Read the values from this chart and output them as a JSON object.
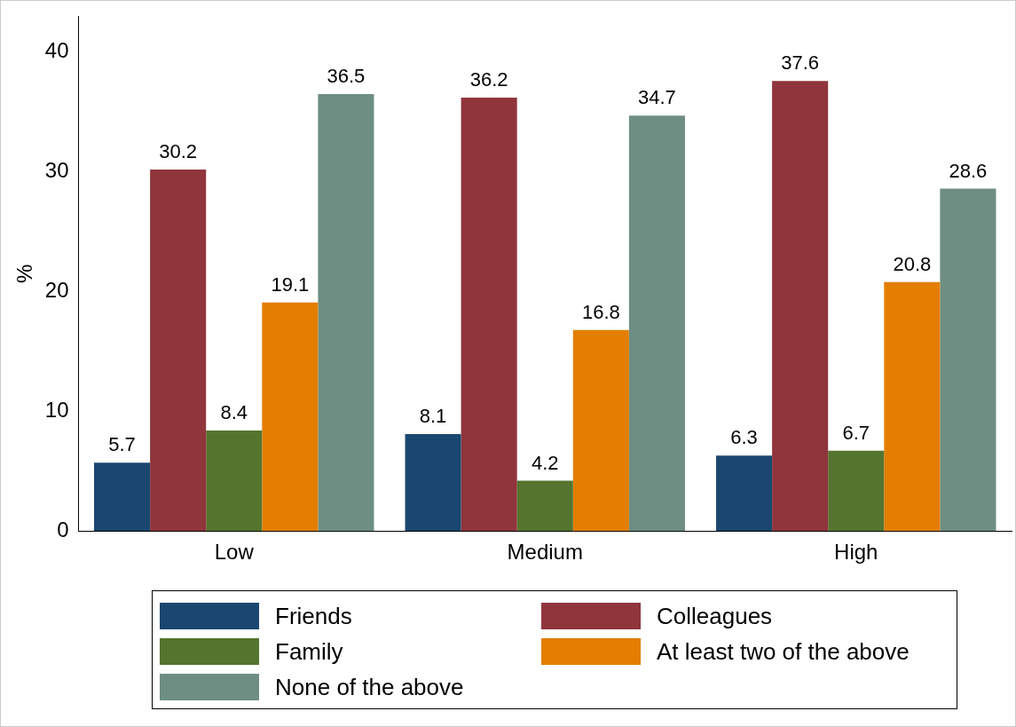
{
  "chart_data": {
    "type": "bar",
    "ylabel": "%",
    "categories": [
      "Low",
      "Medium",
      "High"
    ],
    "series": [
      {
        "name": "Friends",
        "color": "#1a476f",
        "values": [
          5.7,
          8.1,
          6.3
        ]
      },
      {
        "name": "Colleagues",
        "color": "#90353b",
        "values": [
          30.2,
          36.2,
          37.6
        ]
      },
      {
        "name": "Family",
        "color": "#55752f",
        "values": [
          8.4,
          4.2,
          6.7
        ]
      },
      {
        "name": "At least two of the above",
        "color": "#e37e00",
        "values": [
          19.1,
          16.8,
          20.8
        ]
      },
      {
        "name": "None of the above",
        "color": "#6e8e84",
        "values": [
          36.5,
          34.7,
          28.6
        ]
      }
    ],
    "ylim": [
      0,
      43
    ],
    "yticks": [
      0,
      10,
      20,
      30,
      40
    ],
    "grid": false,
    "legend": "bottom",
    "data_labels": true
  }
}
